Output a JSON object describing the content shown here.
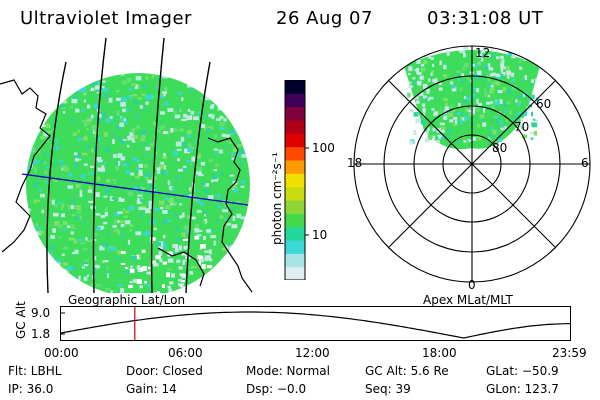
{
  "header": {
    "instrument": "Ultraviolet Imager",
    "date": "26 Aug 07",
    "time": "03:31:08 UT"
  },
  "left_panel": {
    "caption": "Geographic Lat/Lon"
  },
  "right_panel": {
    "caption": "Apex  MLat/MLT",
    "mlt_labels": {
      "top": "12",
      "left": "18",
      "right": "6",
      "bottom": "0"
    },
    "lat_labels": [
      "60",
      "70",
      "80"
    ]
  },
  "colorbar": {
    "unit_label": "photon cm⁻²s⁻¹",
    "ticks": [
      "100",
      "10"
    ],
    "colors": [
      "#e0eef0",
      "#a8e4e8",
      "#3cd8d8",
      "#22d89a",
      "#45d848",
      "#8ed636",
      "#c8dc10",
      "#f0e000",
      "#ff9a00",
      "#ff4800",
      "#e00000",
      "#b00018",
      "#800040",
      "#40005a",
      "#000030"
    ]
  },
  "alt_plot": {
    "ylabel": "GC Alt",
    "yticks": [
      "9.0",
      "1.8"
    ],
    "xticks": [
      "00:00",
      "06:00",
      "12:00",
      "18:00",
      "23:59"
    ],
    "current_marker_hours": 3.52
  },
  "info": {
    "flt": "Flt: LBHL",
    "door": "Door: Closed",
    "mode": "Mode: Normal",
    "gc_alt": "GC Alt: 5.6 Re",
    "glat": "GLat: −50.9",
    "ip": "IP: 36.0",
    "gain": "Gain: 14",
    "dsp": "Dsp:    −0.0",
    "seq": "Seq: 39",
    "glon": "GLon: 123.7"
  },
  "colors": {
    "aurora_primary": "#3ddc5a",
    "aurora_cyan": "#38d8d0",
    "aurora_light": "#c8e8e8",
    "coastline": "#000000",
    "equator_line": "#0000cc",
    "time_marker": "#cc0000"
  }
}
